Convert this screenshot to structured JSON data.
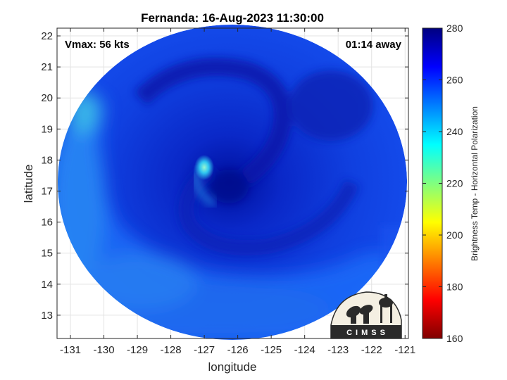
{
  "title": "Fernanda: 16-Aug-2023 11:30:00",
  "annotations": {
    "vmax": "Vmax: 56 kts",
    "time_away": "01:14 away"
  },
  "axes": {
    "xlabel": "longitude",
    "ylabel": "latitude",
    "xlim": [
      -131.4,
      -120.9
    ],
    "ylim": [
      12.25,
      22.25
    ],
    "xticks": [
      -131,
      -130,
      -129,
      -128,
      -127,
      -126,
      -125,
      -124,
      -123,
      -122,
      -121
    ],
    "yticks": [
      13,
      14,
      15,
      16,
      17,
      18,
      19,
      20,
      21,
      22
    ],
    "grid": true
  },
  "colorbar": {
    "label": "Brightness Temp - Horizontal Polarization",
    "range": [
      160,
      280
    ],
    "ticks": [
      160,
      180,
      200,
      220,
      240,
      260,
      280
    ],
    "colormap": "jet"
  },
  "logo": {
    "text": "CIMSS"
  },
  "chart_data": {
    "type": "heatmap",
    "title": "Fernanda: 16-Aug-2023 11:30:00",
    "xlabel": "longitude",
    "ylabel": "latitude",
    "xlim": [
      -131.4,
      -120.9
    ],
    "ylim": [
      12.25,
      22.25
    ],
    "value_range": [
      160,
      280
    ],
    "colorbar_label": "Brightness Temp - Horizontal Polarization",
    "features": [
      {
        "label": "storm center",
        "lon": -126.3,
        "lat": 17.3,
        "value": 270
      },
      {
        "label": "warm inner band",
        "lon": -127.1,
        "lat": 17.9,
        "value": 238
      }
    ]
  }
}
